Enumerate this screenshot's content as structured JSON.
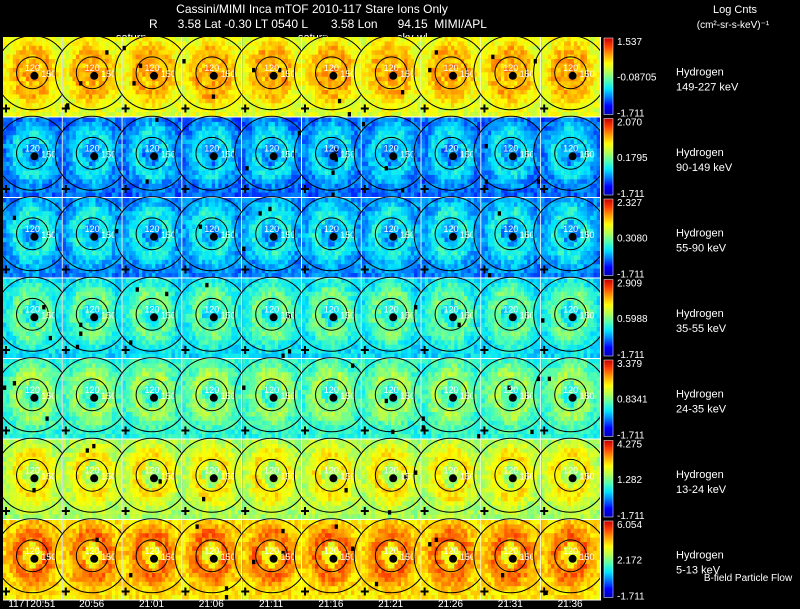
{
  "header": {
    "title": "Cassini/MIMI Inca mTOF  2010-117   Stare   Ions Only",
    "info_line": "R      3.58 Lat -0.30 LT 0540 L       3.58 Lon      94.15  MIMI/APL",
    "overlay_labels": [
      "saturn",
      "saturn",
      "sky-wl"
    ],
    "units_title": "Log Cnts",
    "units": "(cm²-sr-s-keV)⁻¹"
  },
  "footer": {
    "flow_label": "B-field Particle Flow"
  },
  "colors": {
    "background": "#000000",
    "text": "#ffffff",
    "contour": "#000000",
    "colormap": [
      "#0000b4",
      "#0000ff",
      "#0078ff",
      "#00e6ff",
      "#50ffb0",
      "#b4ff50",
      "#ffff00",
      "#ffa500",
      "#ff4000",
      "#c80000"
    ]
  },
  "chart_data": {
    "type": "heatmap",
    "title": "Cassini/MIMI Inca mTOF 2010-117 Stare Ions Only",
    "grid": {
      "columns": 10,
      "rows": 7
    },
    "contour_labels": [
      "120",
      "150"
    ],
    "time_labels": [
      "117T20:51",
      "20:56",
      "21:01",
      "21:06",
      "21:11",
      "21:16",
      "21:21",
      "21:26",
      "21:31",
      "21:36"
    ],
    "rows": [
      {
        "species": "Hydrogen",
        "energy": "149-227 keV",
        "cbar_max": "1.537",
        "cbar_mid": "-0.08705",
        "cbar_min": "-1.711",
        "intensity": 0.72,
        "core": 0.82
      },
      {
        "species": "Hydrogen",
        "energy": "90-149 keV",
        "cbar_max": "2.070",
        "cbar_mid": "0.1795",
        "cbar_min": "-1.711",
        "intensity": 0.3,
        "core": 0.28
      },
      {
        "species": "Hydrogen",
        "energy": "55-90 keV",
        "cbar_max": "2.327",
        "cbar_mid": "0.3080",
        "cbar_min": "-1.711",
        "intensity": 0.33,
        "core": 0.3
      },
      {
        "species": "Hydrogen",
        "energy": "35-55 keV",
        "cbar_max": "2.909",
        "cbar_mid": "0.5988",
        "cbar_min": "-1.711",
        "intensity": 0.43,
        "core": 0.4
      },
      {
        "species": "Hydrogen",
        "energy": "24-35 keV",
        "cbar_max": "3.379",
        "cbar_mid": "0.8341",
        "cbar_min": "-1.711",
        "intensity": 0.49,
        "core": 0.45
      },
      {
        "species": "Hydrogen",
        "energy": "13-24 keV",
        "cbar_max": "4.275",
        "cbar_mid": "1.282",
        "cbar_min": "-1.711",
        "intensity": 0.64,
        "core": 0.58
      },
      {
        "species": "Hydrogen",
        "energy": "5-13 keV",
        "cbar_max": "6.054",
        "cbar_mid": "2.172",
        "cbar_min": "-1.711",
        "intensity": 0.79,
        "core": 0.7
      }
    ]
  }
}
